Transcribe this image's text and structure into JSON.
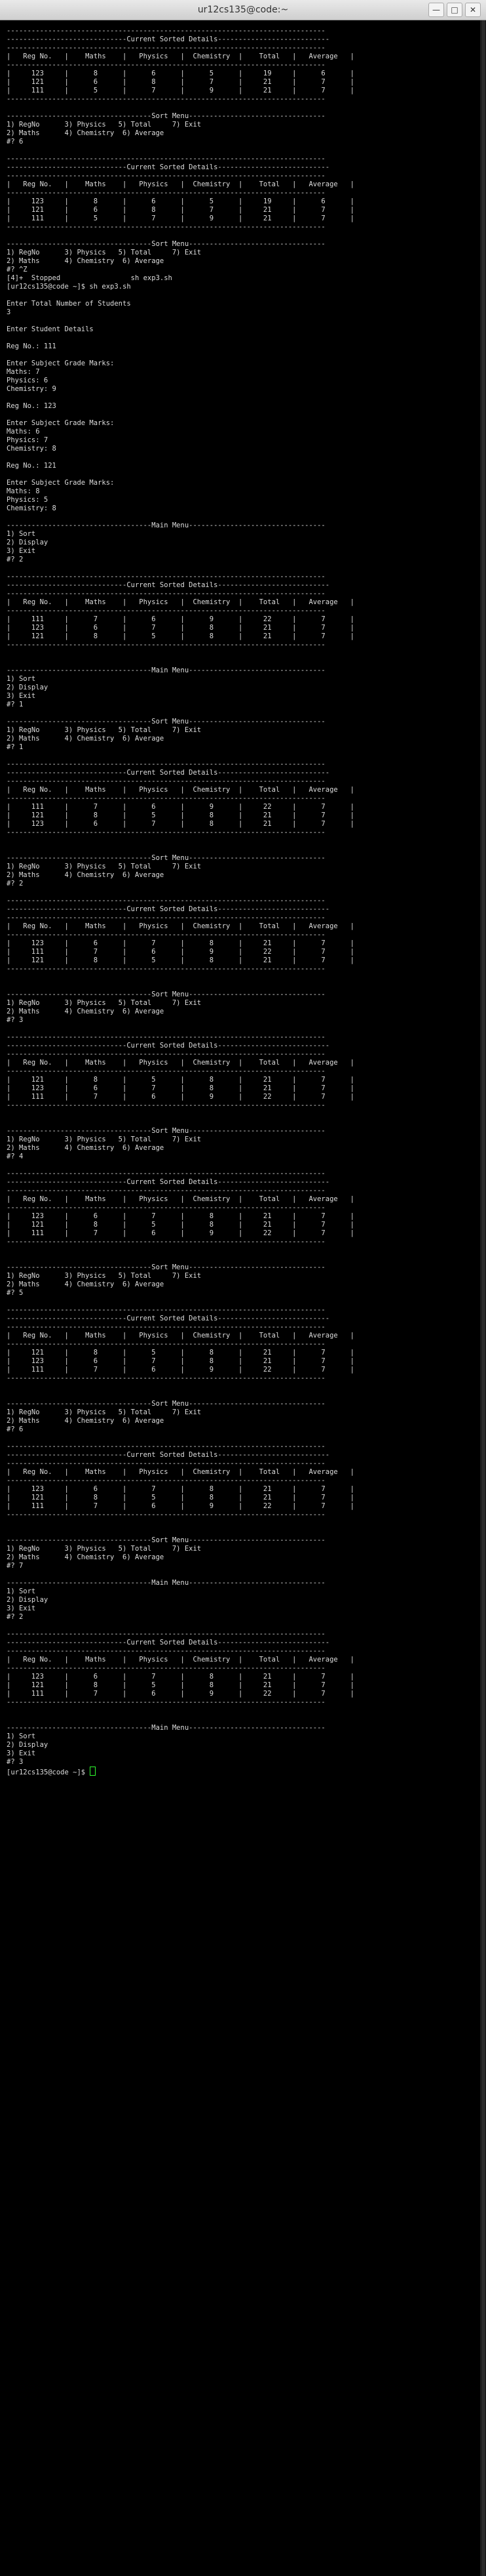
{
  "window": {
    "title": "ur12cs135@code:~",
    "controls": [
      "—",
      "□",
      "✕"
    ]
  },
  "terminal": {
    "lines": [
      "-----------------------------------------------------------------------------",
      "-----------------------------Current Sorted Details---------------------------",
      "-----------------------------------------------------------------------------",
      "|   Reg No.   |    Maths    |   Physics   |  Chemistry  |    Total   |   Average   |",
      "-----------------------------------------------------------------------------",
      "|     123     |      8      |      6      |      5      |     19     |      6      |",
      "|     121     |      6      |      8      |      7      |     21     |      7      |",
      "|     111     |      5      |      7      |      9      |     21     |      7      |",
      "-----------------------------------------------------------------------------",
      "",
      "-----------------------------------Sort Menu---------------------------------",
      "1) RegNo      3) Physics   5) Total     7) Exit",
      "2) Maths      4) Chemistry  6) Average",
      "#? 6",
      "",
      "-----------------------------------------------------------------------------",
      "-----------------------------Current Sorted Details---------------------------",
      "-----------------------------------------------------------------------------",
      "|   Reg No.   |    Maths    |   Physics   |  Chemistry  |    Total   |   Average   |",
      "-----------------------------------------------------------------------------",
      "|     123     |      8      |      6      |      5      |     19     |      6      |",
      "|     121     |      6      |      8      |      7      |     21     |      7      |",
      "|     111     |      5      |      7      |      9      |     21     |      7      |",
      "-----------------------------------------------------------------------------",
      "",
      "-----------------------------------Sort Menu---------------------------------",
      "1) RegNo      3) Physics   5) Total     7) Exit",
      "2) Maths      4) Chemistry  6) Average",
      "#? ^Z",
      "[4]+  Stopped                 sh exp3.sh",
      "[ur12cs135@code ~]$ sh exp3.sh",
      "",
      "Enter Total Number of Students",
      "3",
      "",
      "Enter Student Details",
      "",
      "Reg No.: 111",
      "",
      "Enter Subject Grade Marks:",
      "Maths: 7",
      "Physics: 6",
      "Chemistry: 9",
      "",
      "Reg No.: 123",
      "",
      "Enter Subject Grade Marks:",
      "Maths: 6",
      "Physics: 7",
      "Chemistry: 8",
      "",
      "Reg No.: 121",
      "",
      "Enter Subject Grade Marks:",
      "Maths: 8",
      "Physics: 5",
      "Chemistry: 8",
      "",
      "-----------------------------------Main Menu---------------------------------",
      "1) Sort",
      "2) Display",
      "3) Exit",
      "#? 2",
      "",
      "-----------------------------------------------------------------------------",
      "-----------------------------Current Sorted Details---------------------------",
      "-----------------------------------------------------------------------------",
      "|   Reg No.   |    Maths    |   Physics   |  Chemistry  |    Total   |   Average   |",
      "-----------------------------------------------------------------------------",
      "|     111     |      7      |      6      |      9      |     22     |      7      |",
      "|     123     |      6      |      7      |      8      |     21     |      7      |",
      "|     121     |      8      |      5      |      8      |     21     |      7      |",
      "-----------------------------------------------------------------------------",
      "",
      "",
      "-----------------------------------Main Menu---------------------------------",
      "1) Sort",
      "2) Display",
      "3) Exit",
      "#? 1",
      "",
      "-----------------------------------Sort Menu---------------------------------",
      "1) RegNo      3) Physics   5) Total     7) Exit",
      "2) Maths      4) Chemistry  6) Average",
      "#? 1",
      "",
      "-----------------------------------------------------------------------------",
      "-----------------------------Current Sorted Details---------------------------",
      "-----------------------------------------------------------------------------",
      "|   Reg No.   |    Maths    |   Physics   |  Chemistry  |    Total   |   Average   |",
      "-----------------------------------------------------------------------------",
      "|     111     |      7      |      6      |      9      |     22     |      7      |",
      "|     121     |      8      |      5      |      8      |     21     |      7      |",
      "|     123     |      6      |      7      |      8      |     21     |      7      |",
      "-----------------------------------------------------------------------------",
      "",
      "",
      "-----------------------------------Sort Menu---------------------------------",
      "1) RegNo      3) Physics   5) Total     7) Exit",
      "2) Maths      4) Chemistry  6) Average",
      "#? 2",
      "",
      "-----------------------------------------------------------------------------",
      "-----------------------------Current Sorted Details---------------------------",
      "-----------------------------------------------------------------------------",
      "|   Reg No.   |    Maths    |   Physics   |  Chemistry  |    Total   |   Average   |",
      "-----------------------------------------------------------------------------",
      "|     123     |      6      |      7      |      8      |     21     |      7      |",
      "|     111     |      7      |      6      |      9      |     22     |      7      |",
      "|     121     |      8      |      5      |      8      |     21     |      7      |",
      "-----------------------------------------------------------------------------",
      "",
      "",
      "-----------------------------------Sort Menu---------------------------------",
      "1) RegNo      3) Physics   5) Total     7) Exit",
      "2) Maths      4) Chemistry  6) Average",
      "#? 3",
      "",
      "-----------------------------------------------------------------------------",
      "-----------------------------Current Sorted Details---------------------------",
      "-----------------------------------------------------------------------------",
      "|   Reg No.   |    Maths    |   Physics   |  Chemistry  |    Total   |   Average   |",
      "-----------------------------------------------------------------------------",
      "|     121     |      8      |      5      |      8      |     21     |      7      |",
      "|     123     |      6      |      7      |      8      |     21     |      7      |",
      "|     111     |      7      |      6      |      9      |     22     |      7      |",
      "-----------------------------------------------------------------------------",
      "",
      "",
      "-----------------------------------Sort Menu---------------------------------",
      "1) RegNo      3) Physics   5) Total     7) Exit",
      "2) Maths      4) Chemistry  6) Average",
      "#? 4",
      "",
      "-----------------------------------------------------------------------------",
      "-----------------------------Current Sorted Details---------------------------",
      "-----------------------------------------------------------------------------",
      "|   Reg No.   |    Maths    |   Physics   |  Chemistry  |    Total   |   Average   |",
      "-----------------------------------------------------------------------------",
      "|     123     |      6      |      7      |      8      |     21     |      7      |",
      "|     121     |      8      |      5      |      8      |     21     |      7      |",
      "|     111     |      7      |      6      |      9      |     22     |      7      |",
      "-----------------------------------------------------------------------------",
      "",
      "",
      "-----------------------------------Sort Menu---------------------------------",
      "1) RegNo      3) Physics   5) Total     7) Exit",
      "2) Maths      4) Chemistry  6) Average",
      "#? 5",
      "",
      "-----------------------------------------------------------------------------",
      "-----------------------------Current Sorted Details---------------------------",
      "-----------------------------------------------------------------------------",
      "|   Reg No.   |    Maths    |   Physics   |  Chemistry  |    Total   |   Average   |",
      "-----------------------------------------------------------------------------",
      "|     121     |      8      |      5      |      8      |     21     |      7      |",
      "|     123     |      6      |      7      |      8      |     21     |      7      |",
      "|     111     |      7      |      6      |      9      |     22     |      7      |",
      "-----------------------------------------------------------------------------",
      "",
      "",
      "-----------------------------------Sort Menu---------------------------------",
      "1) RegNo      3) Physics   5) Total     7) Exit",
      "2) Maths      4) Chemistry  6) Average",
      "#? 6",
      "",
      "-----------------------------------------------------------------------------",
      "-----------------------------Current Sorted Details---------------------------",
      "-----------------------------------------------------------------------------",
      "|   Reg No.   |    Maths    |   Physics   |  Chemistry  |    Total   |   Average   |",
      "-----------------------------------------------------------------------------",
      "|     123     |      6      |      7      |      8      |     21     |      7      |",
      "|     121     |      8      |      5      |      8      |     21     |      7      |",
      "|     111     |      7      |      6      |      9      |     22     |      7      |",
      "-----------------------------------------------------------------------------",
      "",
      "",
      "-----------------------------------Sort Menu---------------------------------",
      "1) RegNo      3) Physics   5) Total     7) Exit",
      "2) Maths      4) Chemistry  6) Average",
      "#? 7",
      "",
      "-----------------------------------Main Menu---------------------------------",
      "1) Sort",
      "2) Display",
      "3) Exit",
      "#? 2",
      "",
      "-----------------------------------------------------------------------------",
      "-----------------------------Current Sorted Details---------------------------",
      "-----------------------------------------------------------------------------",
      "|   Reg No.   |    Maths    |   Physics   |  Chemistry  |    Total   |   Average   |",
      "-----------------------------------------------------------------------------",
      "|     123     |      6      |      7      |      8      |     21     |      7      |",
      "|     121     |      8      |      5      |      8      |     21     |      7      |",
      "|     111     |      7      |      6      |      9      |     22     |      7      |",
      "-----------------------------------------------------------------------------",
      "",
      "",
      "-----------------------------------Main Menu---------------------------------",
      "1) Sort",
      "2) Display",
      "3) Exit",
      "#? 3",
      "[ur12cs135@code ~]$ "
    ]
  }
}
